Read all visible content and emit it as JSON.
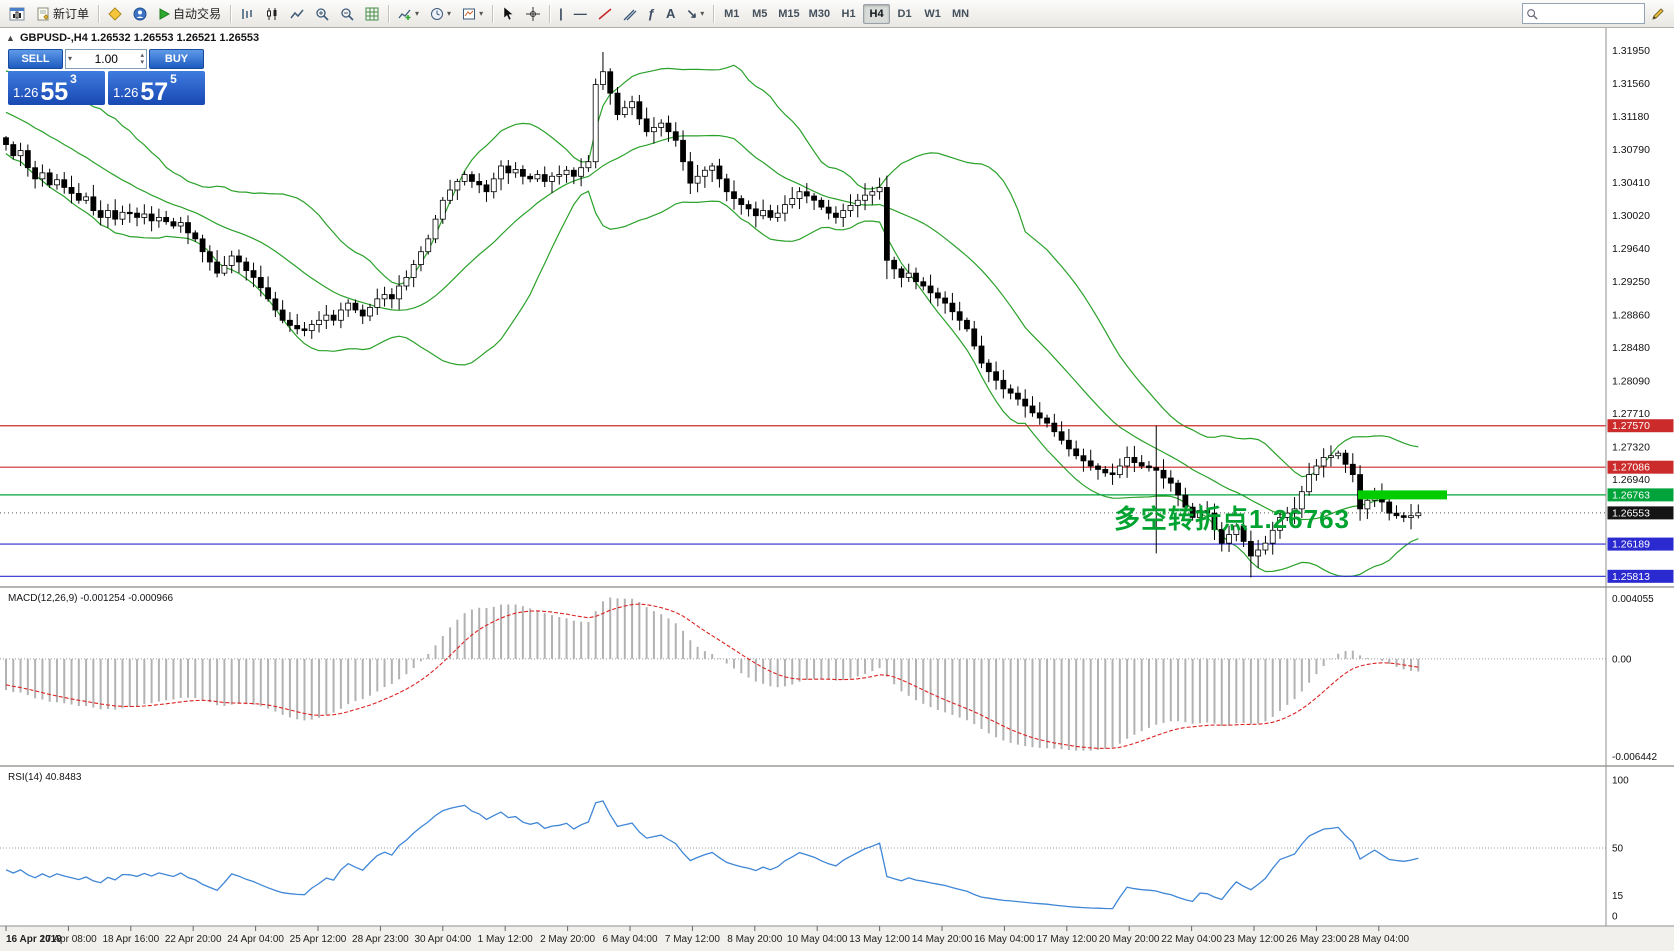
{
  "window": {
    "symbol": "GBPUSD-",
    "timeframe": "H4"
  },
  "toolbar": {
    "new_order_label": "新订单",
    "autotrading_label": "自动交易",
    "timeframes": [
      "M1",
      "M5",
      "M15",
      "M30",
      "H1",
      "H4",
      "D1",
      "W1",
      "MN"
    ],
    "active_timeframe": "H4",
    "search_value": ""
  },
  "trade_panel": {
    "sell_label": "SELL",
    "buy_label": "BUY",
    "volume": "1.00",
    "sell_price_main": "1.26",
    "sell_price_big": "55",
    "sell_price_sup": "3",
    "buy_price_main": "1.26",
    "buy_price_big": "57",
    "buy_price_sup": "5"
  },
  "chart": {
    "symbol_line": "GBPUSD-,H4  1.26532 1.26553 1.26521 1.26553",
    "annotation": "多空转折点1.26763",
    "price_scale": [
      "1.31950",
      "1.31560",
      "1.31180",
      "1.30790",
      "1.30410",
      "1.30020",
      "1.29640",
      "1.29250",
      "1.28860",
      "1.28480",
      "1.28090",
      "1.27710",
      "1.27320",
      "1.26940"
    ],
    "levels": [
      {
        "price": 1.2757,
        "label": "1.27570",
        "color": "#cc2b2b"
      },
      {
        "price": 1.27086,
        "label": "1.27086",
        "color": "#cc2b2b"
      },
      {
        "price": 1.26763,
        "label": "1.26763",
        "color": "#00a43a"
      },
      {
        "price": 1.26189,
        "label": "1.26189",
        "color": "#2a2ad0"
      },
      {
        "price": 1.25813,
        "label": "1.25813",
        "color": "#2a2ad0"
      }
    ],
    "current_price": {
      "value": 1.26553,
      "label": "1.26553",
      "box_color": "#141414"
    },
    "zone_bar": {
      "price": 1.26763,
      "color": "#00cc00"
    },
    "colors": {
      "bollinger": "#2aa12a",
      "bull_candle": "#ffffff",
      "bear_candle": "#000000",
      "macd_histogram": "#b2b2b2",
      "macd_signal": "#dd2222",
      "rsi_line": "#3f86d6"
    }
  },
  "chart_data": {
    "type": "candlestick",
    "symbol": "GBPUSD-",
    "timeframe": "H4",
    "y_range": [
      1.257,
      1.3221
    ],
    "closes": [
      1.3085,
      1.3072,
      1.3078,
      1.3058,
      1.3045,
      1.3052,
      1.3038,
      1.3044,
      1.3035,
      1.3028,
      1.302,
      1.3024,
      1.3008,
      1.3,
      1.3008,
      1.2998,
      1.3006,
      1.3005,
      1.3,
      1.3004,
      1.2996,
      1.3,
      1.2995,
      1.299,
      1.2994,
      1.2982,
      1.2975,
      1.296,
      1.2948,
      1.2935,
      1.2944,
      1.2955,
      1.2948,
      1.2938,
      1.293,
      1.2918,
      1.2905,
      1.2892,
      1.288,
      1.2874,
      1.287,
      1.2868,
      1.2875,
      1.288,
      1.2886,
      1.288,
      1.2892,
      1.29,
      1.2892,
      1.2885,
      1.2895,
      1.2905,
      1.291,
      1.2905,
      1.292,
      1.293,
      1.2945,
      1.296,
      1.2975,
      1.2998,
      1.302,
      1.3032,
      1.3042,
      1.305,
      1.3042,
      1.3038,
      1.303,
      1.3045,
      1.306,
      1.3052,
      1.3056,
      1.3048,
      1.3045,
      1.305,
      1.3042,
      1.3048,
      1.305,
      1.3055,
      1.3048,
      1.3058,
      1.3065,
      1.3155,
      1.317,
      1.3145,
      1.312,
      1.3128,
      1.3135,
      1.3115,
      1.31,
      1.3105,
      1.311,
      1.31,
      1.309,
      1.3065,
      1.304,
      1.3048,
      1.3055,
      1.306,
      1.3045,
      1.303,
      1.3022,
      1.3015,
      1.301,
      1.3002,
      1.3008,
      1.3,
      1.3005,
      1.3015,
      1.3022,
      1.303,
      1.3025,
      1.302,
      1.3012,
      1.3005,
      1.3,
      1.3008,
      1.3014,
      1.302,
      1.3026,
      1.303,
      1.3035,
      1.295,
      1.294,
      1.293,
      1.2935,
      1.2925,
      1.292,
      1.2912,
      1.2906,
      1.29,
      1.289,
      1.288,
      1.287,
      1.285,
      1.283,
      1.282,
      1.281,
      1.28,
      1.2795,
      1.2788,
      1.278,
      1.2772,
      1.2766,
      1.276,
      1.275,
      1.274,
      1.273,
      1.2722,
      1.2716,
      1.271,
      1.2706,
      1.2702,
      1.27,
      1.271,
      1.272,
      1.2714,
      1.271,
      1.2708,
      1.2705,
      1.2696,
      1.269,
      1.2676,
      1.2662,
      1.265,
      1.2658,
      1.2655,
      1.2636,
      1.262,
      1.263,
      1.264,
      1.2622,
      1.2605,
      1.2612,
      1.262,
      1.2635,
      1.265,
      1.2655,
      1.266,
      1.268,
      1.27,
      1.271,
      1.272,
      1.2722,
      1.2725,
      1.2712,
      1.27,
      1.266,
      1.267,
      1.268,
      1.2668,
      1.2655,
      1.2652,
      1.265,
      1.2652,
      1.26553
    ],
    "wick_overrides": {
      "0": {
        "high": 1.3095
      },
      "81": {
        "high": 1.3162
      },
      "82": {
        "high": 1.3193
      },
      "121": {
        "low": 1.2928
      },
      "158": {
        "high": 1.2757,
        "low": 1.2608
      },
      "171": {
        "low": 1.258
      }
    },
    "x_labels": [
      "16 Apr 2019",
      "17 Apr 08:00",
      "18 Apr 16:00",
      "22 Apr 20:00",
      "24 Apr 04:00",
      "25 Apr 12:00",
      "28 Apr 23:00",
      "30 Apr 04:00",
      "1 May 12:00",
      "2 May 20:00",
      "6 May 04:00",
      "7 May 12:00",
      "8 May 20:00",
      "10 May 04:00",
      "13 May 12:00",
      "14 May 20:00",
      "16 May 04:00",
      "17 May 12:00",
      "20 May 20:00",
      "22 May 04:00",
      "23 May 12:00",
      "26 May 23:00",
      "28 May 04:00"
    ],
    "overlays": [
      {
        "name": "Bollinger Bands",
        "period": 20,
        "deviation": 2,
        "color": "#2aa12a"
      }
    ],
    "indicators": [
      {
        "name": "MACD",
        "label": "MACD(12,26,9) -0.001254 -0.000966",
        "params": [
          12,
          26,
          9
        ],
        "current": [
          -0.001254,
          -0.000966
        ],
        "scale": {
          "max": 0.004055,
          "min": -0.006442,
          "labels": [
            "0.004055",
            "0.00",
            "-0.006442"
          ]
        }
      },
      {
        "name": "RSI",
        "label": "RSI(14) 40.8483",
        "params": [
          14
        ],
        "current": 40.8483,
        "scale": {
          "max": 100,
          "min": 0,
          "labels": [
            "100",
            "50",
            "15",
            "0"
          ]
        }
      }
    ]
  }
}
